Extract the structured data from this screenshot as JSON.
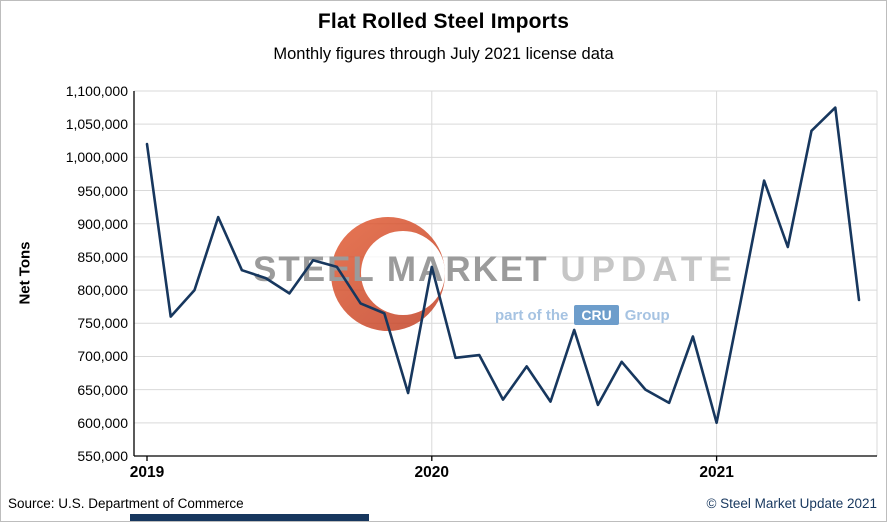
{
  "chart_data": {
    "type": "line",
    "title": "Flat Rolled Steel Imports",
    "subtitle": "Monthly figures through July 2021 license data",
    "ylabel": "Net Tons",
    "xlabel": "",
    "ylim": [
      550000,
      1100000
    ],
    "ytick_step": 50000,
    "grid": "horizontal gray lines every 50,000; vertical gray lines at year starts 2020 and 2021; right border line",
    "legend_position": "none",
    "line_color": "#17375E",
    "x_tick_labels": [
      "2019",
      "2020",
      "2021"
    ],
    "x_tick_month_index": [
      0,
      12,
      24
    ],
    "months": [
      "2019-01",
      "2019-02",
      "2019-03",
      "2019-04",
      "2019-05",
      "2019-06",
      "2019-07",
      "2019-08",
      "2019-09",
      "2019-10",
      "2019-11",
      "2019-12",
      "2020-01",
      "2020-02",
      "2020-03",
      "2020-04",
      "2020-05",
      "2020-06",
      "2020-07",
      "2020-08",
      "2020-09",
      "2020-10",
      "2020-11",
      "2020-12",
      "2021-01",
      "2021-02",
      "2021-03",
      "2021-04",
      "2021-05",
      "2021-06",
      "2021-07"
    ],
    "series": [
      {
        "name": "Flat rolled steel imports (net tons)",
        "values": [
          1020000,
          760000,
          800000,
          910000,
          830000,
          818000,
          795000,
          845000,
          835000,
          780000,
          765000,
          645000,
          835000,
          698000,
          702000,
          635000,
          685000,
          632000,
          740000,
          627000,
          692000,
          650000,
          630000,
          730000,
          600000,
          780000,
          965000,
          865000,
          1040000,
          1075000,
          785000
        ]
      }
    ]
  },
  "watermark": {
    "brand_word_1": "STEEL",
    "brand_word_2": "MARKET",
    "brand_word_3": "UPDATE",
    "tagline_prefix": "part of the",
    "tagline_cru": "CRU",
    "tagline_group": "Group"
  },
  "footer": {
    "source": "Source: U.S. Department of Commerce",
    "copyright": "© Steel Market Update 2021"
  }
}
